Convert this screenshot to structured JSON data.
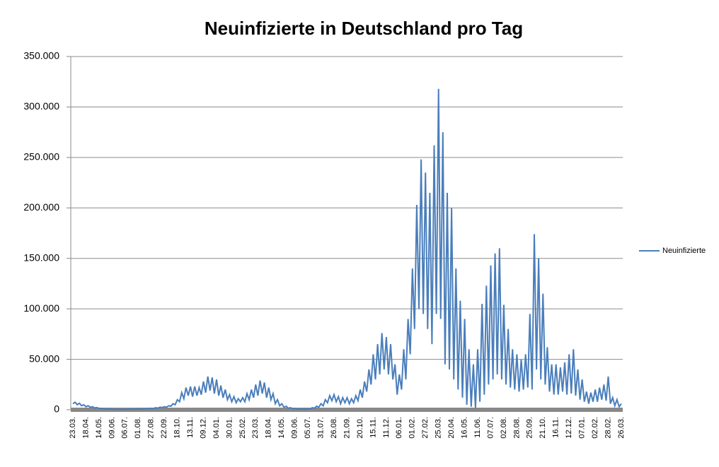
{
  "chart_data": {
    "type": "line",
    "title": "Neuinfizierte in Deutschland pro Tag",
    "categories": [
      "23.03.",
      null,
      null,
      null,
      null,
      null,
      "18.04.",
      null,
      null,
      null,
      null,
      null,
      "14.05.",
      null,
      null,
      null,
      null,
      null,
      "09.06.",
      null,
      null,
      null,
      null,
      null,
      "06.07.",
      null,
      null,
      null,
      null,
      null,
      "01.08.",
      null,
      null,
      null,
      null,
      null,
      "27.08.",
      null,
      null,
      null,
      null,
      null,
      "22.09.",
      null,
      null,
      null,
      null,
      null,
      "18.10.",
      null,
      null,
      null,
      null,
      null,
      "13.11.",
      null,
      null,
      null,
      null,
      null,
      "09.12.",
      null,
      null,
      null,
      null,
      null,
      "04.01.",
      null,
      null,
      null,
      null,
      null,
      "30.01.",
      null,
      null,
      null,
      null,
      null,
      "25.02.",
      null,
      null,
      null,
      null,
      null,
      "23.03.",
      null,
      null,
      null,
      null,
      null,
      "18.04.",
      null,
      null,
      null,
      null,
      null,
      "14.05.",
      null,
      null,
      null,
      null,
      null,
      "09.06.",
      null,
      null,
      null,
      null,
      null,
      "05.07.",
      null,
      null,
      null,
      null,
      null,
      "31.07.",
      null,
      null,
      null,
      null,
      null,
      "26.08.",
      null,
      null,
      null,
      null,
      null,
      "21.09.",
      null,
      null,
      null,
      null,
      null,
      "20.10.",
      null,
      null,
      null,
      null,
      null,
      "15.11.",
      null,
      null,
      null,
      null,
      null,
      "11.12.",
      null,
      null,
      null,
      null,
      null,
      "06.01.",
      null,
      null,
      null,
      null,
      null,
      "01.02.",
      null,
      null,
      null,
      null,
      null,
      "27.02.",
      null,
      null,
      null,
      null,
      null,
      "25.03.",
      null,
      null,
      null,
      null,
      null,
      "20.04.",
      null,
      null,
      null,
      null,
      null,
      "16.05.",
      null,
      null,
      null,
      null,
      null,
      "11.06.",
      null,
      null,
      null,
      null,
      null,
      "07.07.",
      null,
      null,
      null,
      null,
      null,
      "02.08.",
      null,
      null,
      null,
      null,
      null,
      "28.08.",
      null,
      null,
      null,
      null,
      null,
      "25.09.",
      null,
      null,
      null,
      null,
      null,
      "21.10.",
      null,
      null,
      null,
      null,
      null,
      "16.11.",
      null,
      null,
      null,
      null,
      null,
      "12.12.",
      null,
      null,
      null,
      null,
      null,
      "07.01.",
      null,
      null,
      null,
      null,
      null,
      "02.02.",
      null,
      null,
      null,
      null,
      null,
      "28.02.",
      null,
      null,
      null,
      null,
      null,
      "26.03."
    ],
    "series": [
      {
        "name": "Neuinfizierte",
        "color": "#4a7ebb",
        "values": [
          6000,
          7500,
          5000,
          6500,
          4000,
          5000,
          3000,
          4000,
          2500,
          3000,
          1800,
          2200,
          1500,
          1200,
          1000,
          900,
          800,
          700,
          600,
          500,
          500,
          450,
          500,
          400,
          500,
          450,
          600,
          500,
          700,
          600,
          800,
          700,
          1000,
          900,
          1200,
          1100,
          1500,
          1200,
          2000,
          1600,
          2500,
          2200,
          3000,
          2500,
          4000,
          3500,
          6000,
          5000,
          10000,
          8000,
          17000,
          11000,
          22000,
          14000,
          23000,
          13000,
          23000,
          14000,
          22000,
          15000,
          28000,
          17000,
          33000,
          19000,
          32000,
          16000,
          30000,
          14000,
          24000,
          12000,
          20000,
          10000,
          15000,
          8000,
          13000,
          7000,
          11000,
          8000,
          12000,
          8000,
          16000,
          10000,
          20000,
          12000,
          25000,
          14000,
          29000,
          16000,
          27000,
          12000,
          22000,
          10000,
          16000,
          6000,
          10000,
          4000,
          6000,
          2500,
          3500,
          1500,
          2000,
          1000,
          1200,
          600,
          800,
          500,
          700,
          600,
          1000,
          800,
          2000,
          1500,
          3500,
          2500,
          6000,
          4000,
          10000,
          7000,
          14000,
          9000,
          15000,
          8000,
          13000,
          6000,
          12000,
          7000,
          12000,
          6000,
          11000,
          7000,
          14000,
          9000,
          20000,
          12000,
          28000,
          18000,
          40000,
          25000,
          55000,
          30000,
          65000,
          35000,
          76000,
          40000,
          72000,
          35000,
          65000,
          30000,
          45000,
          15000,
          35000,
          20000,
          60000,
          30000,
          90000,
          55000,
          140000,
          80000,
          203000,
          100000,
          248000,
          95000,
          235000,
          80000,
          215000,
          65000,
          262000,
          95000,
          318000,
          90000,
          275000,
          45000,
          215000,
          40000,
          200000,
          30000,
          140000,
          20000,
          108000,
          12000,
          90000,
          5000,
          60000,
          3000,
          45000,
          2000,
          60000,
          8000,
          105000,
          15000,
          123000,
          25000,
          143000,
          30000,
          155000,
          35000,
          160000,
          30000,
          104000,
          25000,
          80000,
          22000,
          60000,
          20000,
          55000,
          18000,
          50000,
          20000,
          55000,
          22000,
          95000,
          20000,
          174000,
          40000,
          150000,
          30000,
          115000,
          25000,
          62000,
          18000,
          45000,
          15000,
          45000,
          15000,
          42000,
          18000,
          47000,
          15000,
          55000,
          16000,
          60000,
          14000,
          40000,
          10000,
          30000,
          8000,
          18000,
          6000,
          17000,
          8000,
          20000,
          8000,
          22000,
          10000,
          25000,
          9000,
          33000,
          6000,
          12000,
          4000,
          10000,
          3000,
          6000
        ]
      }
    ],
    "ylim": [
      0,
      350000
    ],
    "yticks": [
      0,
      {
        "value": 50000,
        "label": "50.000"
      },
      {
        "value": 100000,
        "label": "100.000"
      },
      {
        "value": 150000,
        "label": "150.000"
      },
      {
        "value": 200000,
        "label": "200.000"
      },
      {
        "value": 250000,
        "label": "250.000"
      },
      {
        "value": 300000,
        "label": "300.000"
      },
      {
        "value": 350000,
        "label": "350.000"
      }
    ],
    "grid": true,
    "legend": "right"
  }
}
